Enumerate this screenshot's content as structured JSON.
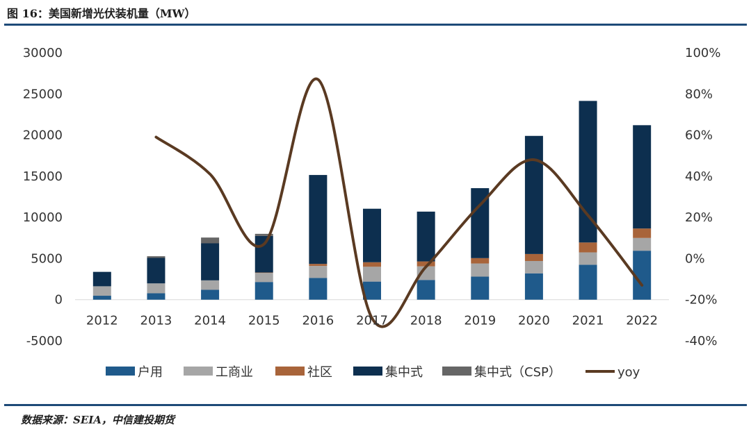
{
  "figure": {
    "title": "图 16：美国新增光伏装机量（MW）",
    "source": "数据来源：SEIA，中信建投期货"
  },
  "chart_data": {
    "type": "bar",
    "stacked": true,
    "title": "图 16：美国新增光伏装机量（MW）",
    "categories": [
      "2012",
      "2013",
      "2014",
      "2015",
      "2016",
      "2017",
      "2018",
      "2019",
      "2020",
      "2021",
      "2022"
    ],
    "y_left": {
      "min": -5000,
      "max": 30000,
      "ticks": [
        "-5000",
        "0",
        "5000",
        "10000",
        "15000",
        "20000",
        "25000",
        "30000"
      ]
    },
    "y_right": {
      "min": -0.4,
      "max": 1.0,
      "ticks": [
        "-40%",
        "-20%",
        "0%",
        "20%",
        "40%",
        "60%",
        "80%",
        "100%"
      ]
    },
    "series": [
      {
        "name": "户用",
        "type": "bar",
        "color": "#1f5a8b",
        "values": [
          480,
          780,
          1200,
          2150,
          2650,
          2200,
          2400,
          2800,
          3200,
          4250,
          5950
        ]
      },
      {
        "name": "工商业",
        "type": "bar",
        "color": "#a6a6a6",
        "values": [
          1150,
          1200,
          1150,
          1100,
          1450,
          1800,
          1650,
          1600,
          1500,
          1500,
          1550
        ]
      },
      {
        "name": "社区",
        "type": "bar",
        "color": "#a8643a",
        "values": [
          0,
          0,
          0,
          50,
          250,
          550,
          600,
          650,
          850,
          1200,
          1150
        ]
      },
      {
        "name": "集中式",
        "type": "bar",
        "color": "#0d2f4f",
        "values": [
          1750,
          3100,
          4500,
          4450,
          10800,
          6500,
          6050,
          8500,
          14350,
          17200,
          12550
        ]
      },
      {
        "name": "集中式（CSP）",
        "type": "bar",
        "color": "#666666",
        "values": [
          0,
          200,
          700,
          250,
          0,
          0,
          0,
          0,
          0,
          0,
          0
        ]
      },
      {
        "name": "yoy",
        "type": "line",
        "axis": "right",
        "color": "#5a3a22",
        "values": [
          null,
          0.59,
          0.41,
          0.07,
          0.87,
          -0.29,
          -0.04,
          0.26,
          0.48,
          0.21,
          -0.13
        ]
      }
    ],
    "legend": "bottom",
    "grid": false
  }
}
